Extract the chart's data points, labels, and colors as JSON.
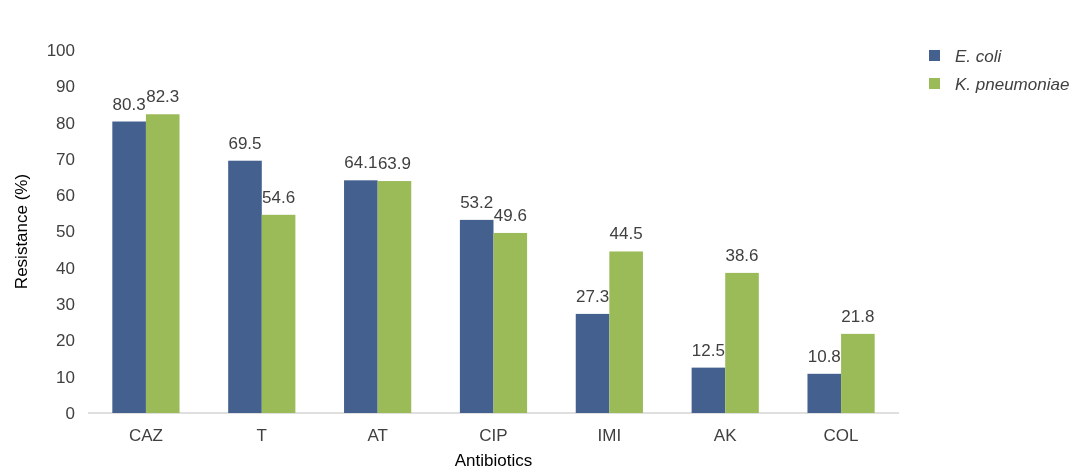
{
  "chart_data": {
    "type": "bar",
    "xlabel": "Antibiotics",
    "ylabel": "Resistance (%)",
    "categories": [
      "CAZ",
      "T",
      "AT",
      "CIP",
      "IMI",
      "AK",
      "COL"
    ],
    "series": [
      {
        "name": "E. coli",
        "color": "#44608f",
        "values": [
          80.3,
          69.5,
          64.1,
          53.2,
          27.3,
          12.5,
          10.8
        ]
      },
      {
        "name": "K. pneumoniae",
        "color": "#9bbb59",
        "values": [
          82.3,
          54.6,
          63.9,
          49.6,
          44.5,
          38.6,
          21.8
        ]
      }
    ],
    "ylim": [
      0,
      100
    ],
    "yticks": [
      0,
      10,
      20,
      30,
      40,
      50,
      60,
      70,
      80,
      90,
      100
    ],
    "grid": false,
    "legend": "top right",
    "data_labels": true
  }
}
